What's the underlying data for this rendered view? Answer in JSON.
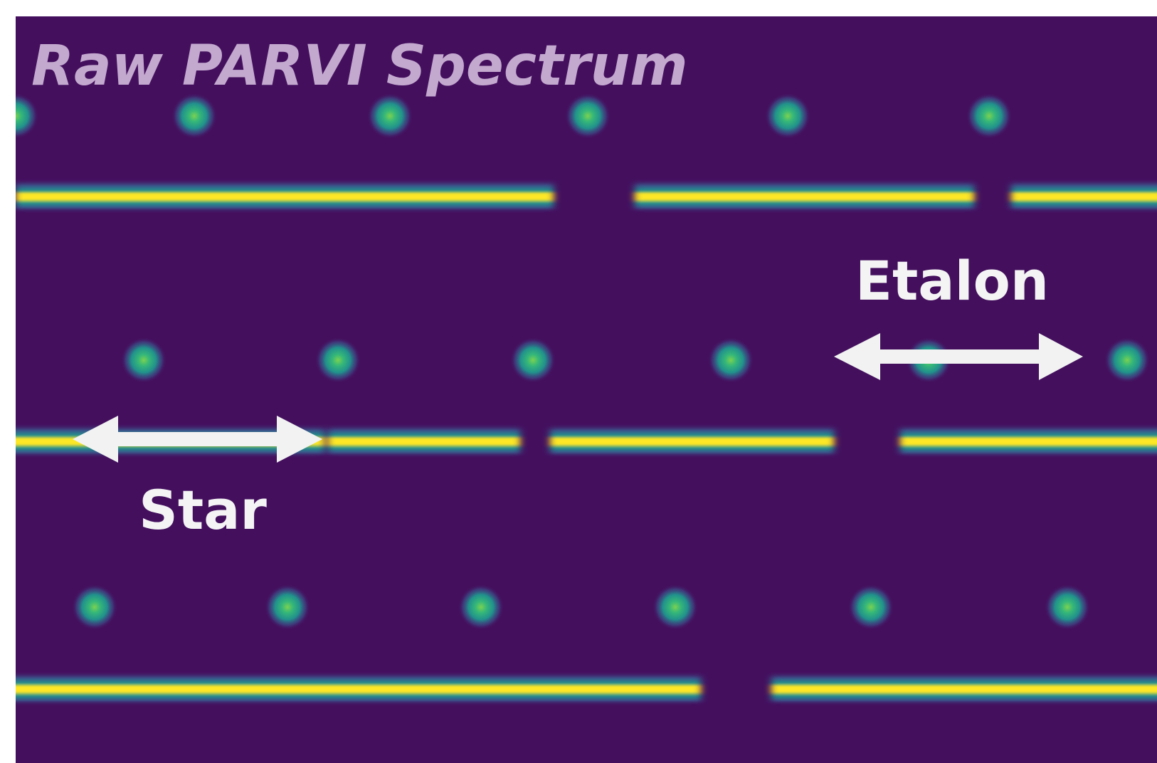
{
  "title": "Raw PARVI Spectrum",
  "annotations": {
    "etalon": "Etalon",
    "star": "Star"
  }
}
